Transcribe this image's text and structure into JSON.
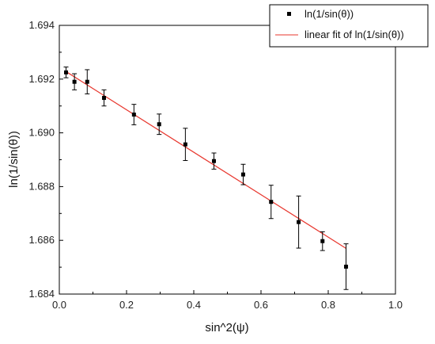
{
  "chart_data": {
    "type": "scatter",
    "xlabel": "sin^2(ψ)",
    "ylabel": "ln(1/sin(θ))",
    "xlim": [
      0.0,
      1.0
    ],
    "ylim": [
      1.684,
      1.694
    ],
    "x_ticks": [
      {
        "value": 0.0,
        "label": "0.0"
      },
      {
        "value": 0.2,
        "label": "0.2"
      },
      {
        "value": 0.4,
        "label": "0.4"
      },
      {
        "value": 0.6,
        "label": "0.6"
      },
      {
        "value": 0.8,
        "label": "0.8"
      },
      {
        "value": 1.0,
        "label": "1.0"
      }
    ],
    "y_ticks": [
      {
        "value": 1.684,
        "label": "1.684"
      },
      {
        "value": 1.686,
        "label": "1.686"
      },
      {
        "value": 1.688,
        "label": "1.688"
      },
      {
        "value": 1.69,
        "label": "1.690"
      },
      {
        "value": 1.692,
        "label": "1.692"
      },
      {
        "value": 1.694,
        "label": "1.694"
      }
    ],
    "grid": false,
    "legend_position": "top-right",
    "series": [
      {
        "name": "ln(1/sin(θ))",
        "kind": "scatter",
        "color": "#000000",
        "points": [
          {
            "x": 0.02,
            "y": 1.69225,
            "err": 0.0002
          },
          {
            "x": 0.045,
            "y": 1.6919,
            "err": 0.0003
          },
          {
            "x": 0.083,
            "y": 1.6919,
            "err": 0.00045
          },
          {
            "x": 0.133,
            "y": 1.6913,
            "err": 0.0003
          },
          {
            "x": 0.222,
            "y": 1.69068,
            "err": 0.00038
          },
          {
            "x": 0.297,
            "y": 1.69032,
            "err": 0.00038
          },
          {
            "x": 0.375,
            "y": 1.68957,
            "err": 0.0006
          },
          {
            "x": 0.46,
            "y": 1.68895,
            "err": 0.0003
          },
          {
            "x": 0.547,
            "y": 1.68845,
            "err": 0.00038
          },
          {
            "x": 0.63,
            "y": 1.68743,
            "err": 0.00062
          },
          {
            "x": 0.712,
            "y": 1.68668,
            "err": 0.00097
          },
          {
            "x": 0.783,
            "y": 1.68597,
            "err": 0.00035
          },
          {
            "x": 0.853,
            "y": 1.68502,
            "err": 0.00085
          }
        ]
      },
      {
        "name": "linear fit of ln(1/sin(θ))",
        "kind": "line",
        "color": "#e8372e",
        "points": [
          {
            "x": 0.02,
            "y": 1.69228
          },
          {
            "x": 0.853,
            "y": 1.6857
          }
        ]
      }
    ]
  }
}
